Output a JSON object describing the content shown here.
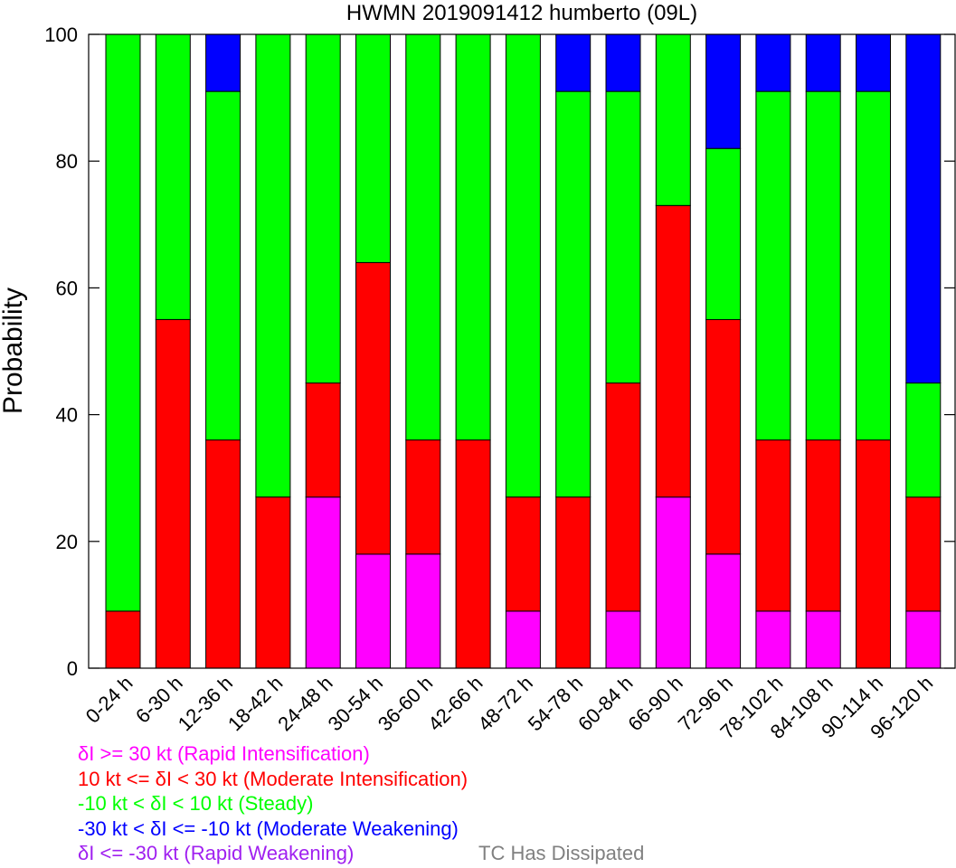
{
  "colors": {
    "rapid_intensification": "#ff00ff",
    "moderate_intensification": "#ff0000",
    "steady": "#00ff00",
    "moderate_weakening": "#0000ff",
    "rapid_weakening": "#a020f0",
    "dissipated": "#808080"
  },
  "legend": {
    "items": [
      {
        "key": "rapid_intensification",
        "label": "δI >= 30 kt (Rapid Intensification)"
      },
      {
        "key": "moderate_intensification",
        "label": "10 kt <= δI < 30 kt (Moderate Intensification)"
      },
      {
        "key": "steady",
        "label": "-10 kt < δI < 10 kt (Steady)"
      },
      {
        "key": "moderate_weakening",
        "label": "-30 kt < δI <= -10 kt (Moderate Weakening)"
      },
      {
        "key": "rapid_weakening",
        "label": "δI <= -30 kt (Rapid Weakening)"
      }
    ],
    "dissipated_label": "TC Has Dissipated"
  },
  "chart_data": {
    "type": "bar",
    "stacked": true,
    "title": "HWMN 2019091412 humberto (09L)",
    "xlabel": "",
    "ylabel": "Probability",
    "ylim": [
      0,
      100
    ],
    "yticks": [
      0,
      20,
      40,
      60,
      80,
      100
    ],
    "grid": false,
    "categories": [
      "0-24 h",
      "6-30 h",
      "12-36 h",
      "18-42 h",
      "24-48 h",
      "30-54 h",
      "36-60 h",
      "42-66 h",
      "48-72 h",
      "54-78 h",
      "60-84 h",
      "66-90 h",
      "72-96 h",
      "78-102 h",
      "84-108 h",
      "90-114 h",
      "96-120 h"
    ],
    "series": [
      {
        "key": "rapid_intensification",
        "values": [
          0,
          0,
          0,
          0,
          27,
          18,
          18,
          0,
          9,
          0,
          9,
          27,
          18,
          9,
          9,
          0,
          9
        ]
      },
      {
        "key": "moderate_intensification",
        "values": [
          9,
          55,
          36,
          27,
          18,
          46,
          18,
          36,
          18,
          27,
          36,
          46,
          37,
          27,
          27,
          36,
          18
        ]
      },
      {
        "key": "steady",
        "values": [
          91,
          45,
          55,
          73,
          55,
          36,
          64,
          64,
          73,
          64,
          46,
          27,
          27,
          55,
          55,
          55,
          18
        ]
      },
      {
        "key": "moderate_weakening",
        "values": [
          0,
          0,
          9,
          0,
          0,
          0,
          0,
          0,
          0,
          9,
          9,
          0,
          18,
          9,
          9,
          9,
          55
        ]
      },
      {
        "key": "rapid_weakening",
        "values": [
          0,
          0,
          0,
          0,
          0,
          0,
          0,
          0,
          0,
          0,
          0,
          0,
          0,
          0,
          0,
          0,
          0
        ]
      }
    ]
  }
}
